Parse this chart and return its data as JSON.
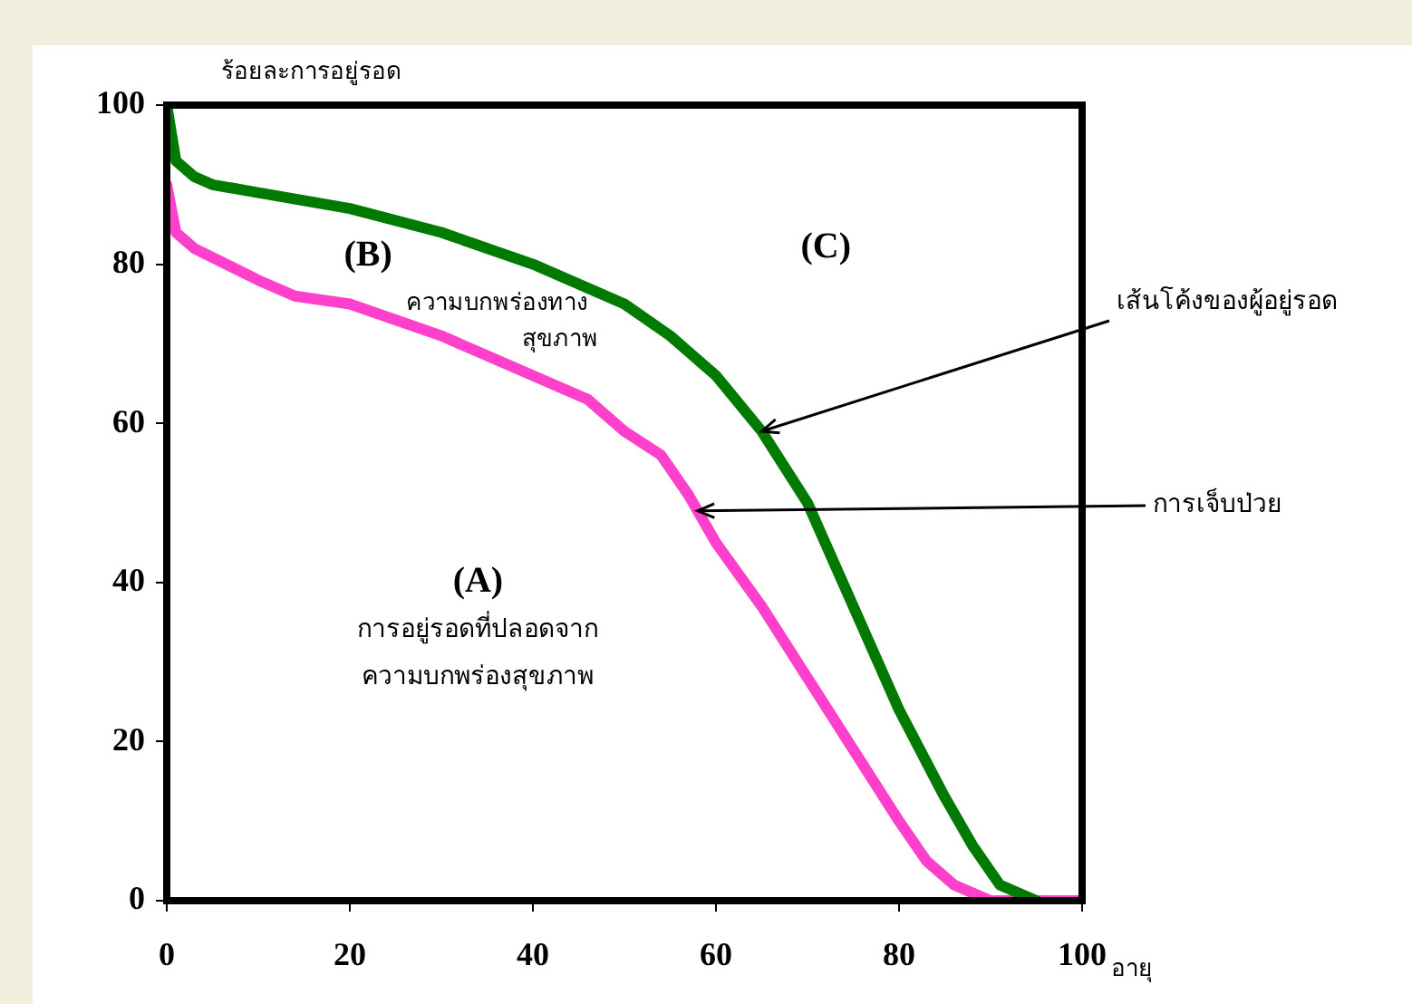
{
  "chart_data": {
    "type": "line",
    "xlabel": "อายุ",
    "ylabel": "ร้อยละการอยู่รอด",
    "xlim": [
      0,
      100
    ],
    "xticks": [
      0,
      20,
      40,
      60,
      80,
      100
    ],
    "ylim": [
      0,
      100
    ],
    "yticks": [
      0,
      20,
      40,
      60,
      80,
      100
    ],
    "grid": false,
    "legend": false,
    "marker": "none",
    "line_style": "solid",
    "series": [
      {
        "color": "#007a00",
        "x": [
          0,
          1,
          3,
          5,
          10,
          20,
          30,
          40,
          50,
          55,
          60,
          65,
          70,
          75,
          80,
          85,
          88,
          91,
          95
        ],
        "values": [
          100,
          93,
          91,
          90,
          89,
          87,
          84,
          80,
          75,
          71,
          66,
          59,
          50,
          37,
          24,
          13,
          7,
          2,
          0
        ]
      },
      {
        "color": "#ff40cc",
        "x": [
          0,
          1,
          3,
          10,
          14,
          20,
          30,
          40,
          46,
          50,
          54,
          57,
          60,
          65,
          70,
          75,
          80,
          83,
          86,
          90,
          100
        ],
        "values": [
          90,
          84,
          82,
          78,
          76,
          75,
          71,
          66,
          63,
          59,
          56,
          51,
          45,
          37,
          28,
          19,
          10,
          5,
          2,
          0,
          0
        ]
      }
    ],
    "annotations": [
      "(B)",
      "ความบกพร่องทาง",
      "สุขภาพ",
      "(C)",
      "(A)",
      "การอยู่รอดที่ปลอดจาก",
      "ความบกพร่องสุขภาพ",
      {
        "text": "เส้นโค้งของผู้อยู่รอด",
        "x": 65,
        "y": 59
      },
      {
        "text": "การเจ็บป่วย",
        "x": 58,
        "y": 49
      }
    ]
  }
}
